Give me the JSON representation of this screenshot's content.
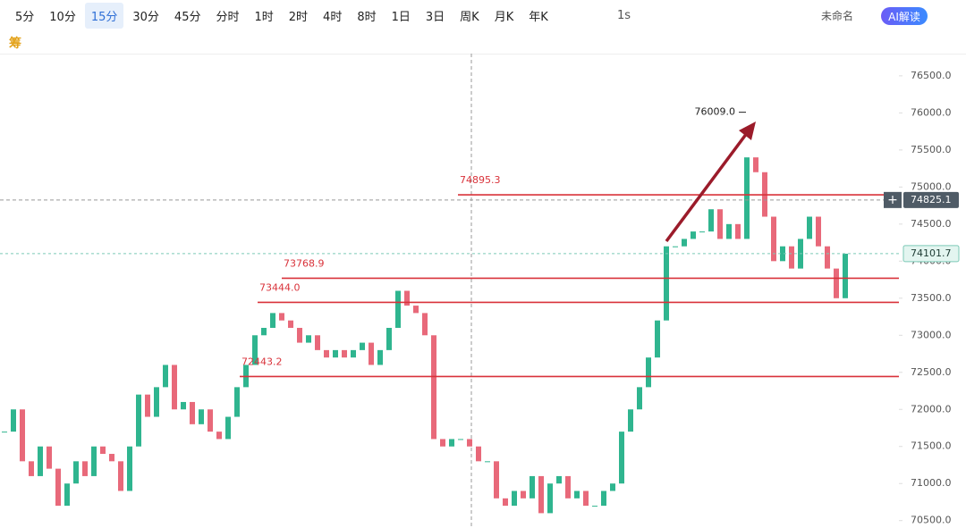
{
  "toolbar": {
    "intervals": [
      "5分",
      "10分",
      "15分",
      "30分",
      "45分",
      "分时",
      "1时",
      "2时",
      "4时",
      "8时",
      "1日",
      "3日",
      "周K",
      "月K",
      "年K"
    ],
    "active": "15分",
    "speed": "1s",
    "layout_name": "未命名",
    "ai_button": "AI解读",
    "chip_icon": "筹"
  },
  "chart_data": {
    "type": "candlestick",
    "closes": [
      71700,
      72000,
      71300,
      71100,
      71500,
      71200,
      70700,
      71000,
      71300,
      71100,
      71500,
      71400,
      71300,
      70900,
      71500,
      72200,
      71900,
      72300,
      72600,
      72000,
      72100,
      71800,
      72000,
      71700,
      71600,
      71900,
      72300,
      72600,
      73000,
      73100,
      73300,
      73200,
      73100,
      72900,
      73000,
      72800,
      72700,
      72800,
      72700,
      72800,
      72900,
      72600,
      72800,
      73100,
      73600,
      73400,
      73300,
      73000,
      71600,
      71500,
      71600,
      71600,
      71500,
      71300,
      71300,
      70800,
      70700,
      70900,
      70800,
      71100,
      70600,
      71000,
      71100,
      70800,
      70900,
      70700,
      70700,
      70900,
      71000,
      71700,
      72000,
      72300,
      72700,
      73200,
      74200,
      74200,
      74300,
      74400,
      74400,
      74700,
      74300,
      74500,
      74300,
      75400,
      75200,
      74600,
      74000,
      74200,
      73900,
      74300,
      74600,
      74200,
      73900,
      73500,
      74100
    ],
    "up_color": "#2fb58f",
    "down_color": "#e8697a",
    "ylim": [
      70400,
      76800
    ],
    "yticks": [
      {
        "value": 70500,
        "label": "70500.0"
      },
      {
        "value": 71000,
        "label": "71000.0"
      },
      {
        "value": 71500,
        "label": "71500.0"
      },
      {
        "value": 72000,
        "label": "72000.0"
      },
      {
        "value": 72500,
        "label": "72500.0"
      },
      {
        "value": 73000,
        "label": "73000.0"
      },
      {
        "value": 73500,
        "label": "73500.0"
      },
      {
        "value": 74000,
        "label": "74000.0"
      },
      {
        "value": 74500,
        "label": "74500.0"
      },
      {
        "value": 75000,
        "label": "75000.0"
      },
      {
        "value": 75500,
        "label": "75500.0"
      },
      {
        "value": 76000,
        "label": "76000.0"
      },
      {
        "value": 76500,
        "label": "76500.0"
      }
    ],
    "levels": [
      {
        "value": 74895.3,
        "label": "74895.3"
      },
      {
        "value": 73768.9,
        "label": "73768.9"
      },
      {
        "value": 73444.0,
        "label": "73444.0"
      },
      {
        "value": 72443.2,
        "label": "72443.2"
      }
    ],
    "level_color": "#d9323a",
    "crosshair_price": {
      "value": 74825.1,
      "label": "74825.1"
    },
    "last_price": {
      "value": 74101.7,
      "label": "74101.7"
    },
    "high_annotation": {
      "value": 76009.0,
      "label": "76009.0"
    }
  }
}
